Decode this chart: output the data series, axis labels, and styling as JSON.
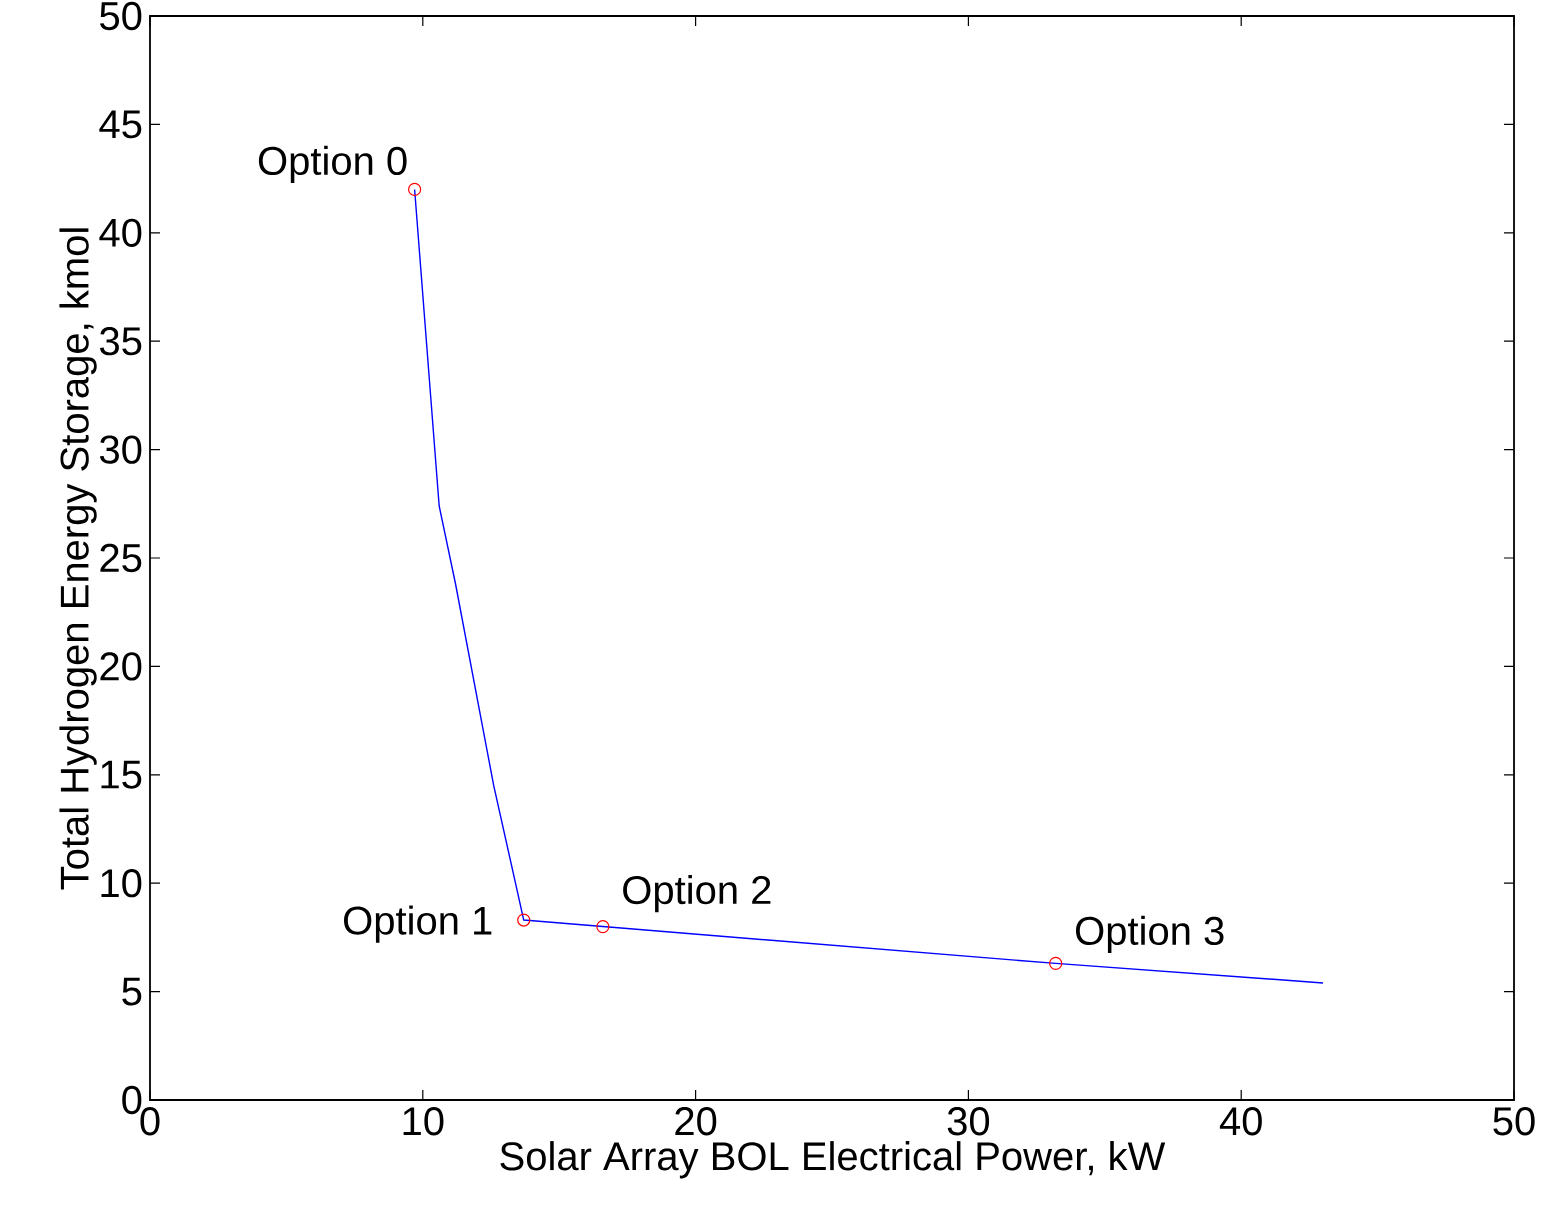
{
  "chart_data": {
    "type": "line",
    "xlabel": "Solar Array BOL Electrical Power, kW",
    "ylabel": "Total Hydrogen Energy Storage, kmol",
    "xlim": [
      0,
      50
    ],
    "ylim": [
      0,
      50
    ],
    "xticks": [
      0,
      10,
      20,
      30,
      40,
      50
    ],
    "yticks": [
      0,
      5,
      10,
      15,
      20,
      25,
      30,
      35,
      40,
      45,
      50
    ],
    "grid": false,
    "series": [
      {
        "color": "#0000ff",
        "marker": "none",
        "x": [
          9.7,
          10.6,
          11.2,
          12.6,
          13.7,
          16.6,
          33.2,
          43.0
        ],
        "values": [
          42.0,
          27.4,
          23.8,
          14.5,
          8.3,
          8.0,
          6.3,
          5.4
        ]
      },
      {
        "type": "scatter",
        "color": "#ff0000",
        "marker": "circle",
        "x": [
          9.7,
          13.7,
          16.6,
          33.2
        ],
        "values": [
          42.0,
          8.3,
          8.0,
          6.3
        ]
      }
    ],
    "annotations": [
      {
        "text": "Option 0",
        "x": 9.7,
        "y": 42.0
      },
      {
        "text": "Option 1",
        "x": 13.7,
        "y": 8.3
      },
      {
        "text": "Option 2",
        "x": 16.6,
        "y": 8.0
      },
      {
        "text": "Option 3",
        "x": 33.2,
        "y": 6.3
      }
    ]
  }
}
